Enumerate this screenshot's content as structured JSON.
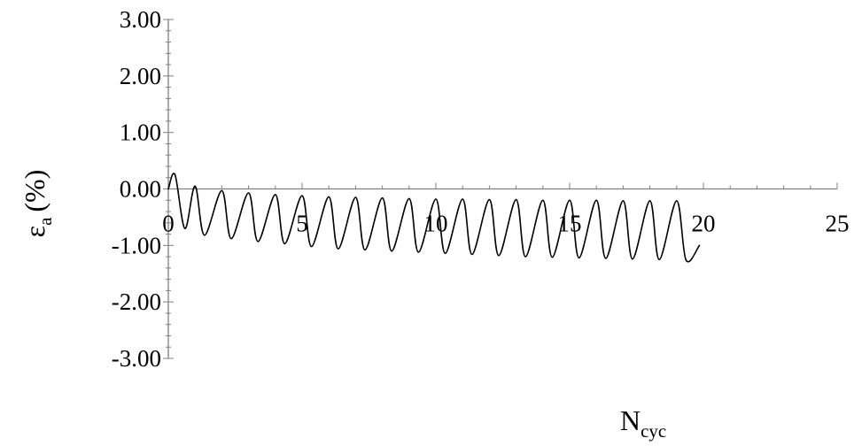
{
  "chart_data": {
    "type": "line",
    "title": "",
    "xlabel": "N",
    "xlabel_sub": "cyc",
    "ylabel": "ε",
    "ylabel_sub": "a",
    "ylabel_unit": "(%)",
    "xlim": [
      0,
      25
    ],
    "ylim": [
      -3,
      3
    ],
    "x_ticks": [
      "0",
      "5",
      "10",
      "15",
      "20",
      "25"
    ],
    "y_ticks": [
      "3.00",
      "2.00",
      "1.00",
      "0.00",
      "-1.00",
      "-2.00",
      "-3.00"
    ],
    "grid": false,
    "legend": "none",
    "line_color": "#000000",
    "series": [
      {
        "x": [
          0,
          0.25,
          0.62,
          1.0,
          1.35,
          2.0,
          2.35,
          3.0,
          3.35,
          4.0,
          4.35,
          5.0,
          5.35,
          6.0,
          6.35,
          7.0,
          7.35,
          8.0,
          8.35,
          9.0,
          9.35,
          10.0,
          10.35,
          11.0,
          11.35,
          12.0,
          12.35,
          13.0,
          13.35,
          14.0,
          14.35,
          15.0,
          15.35,
          16.0,
          16.35,
          17.0,
          17.35,
          18.0,
          18.35,
          19.0,
          19.35,
          19.85
        ],
        "y": [
          0.0,
          0.25,
          -0.7,
          0.05,
          -0.82,
          -0.03,
          -0.88,
          -0.07,
          -0.93,
          -0.1,
          -0.97,
          -0.12,
          -1.02,
          -0.14,
          -1.06,
          -0.15,
          -1.08,
          -0.16,
          -1.1,
          -0.17,
          -1.12,
          -0.18,
          -1.14,
          -0.18,
          -1.16,
          -0.19,
          -1.18,
          -0.19,
          -1.2,
          -0.2,
          -1.21,
          -0.2,
          -1.22,
          -0.2,
          -1.23,
          -0.21,
          -1.24,
          -0.21,
          -1.25,
          -0.21,
          -1.26,
          -1.0
        ]
      }
    ]
  }
}
